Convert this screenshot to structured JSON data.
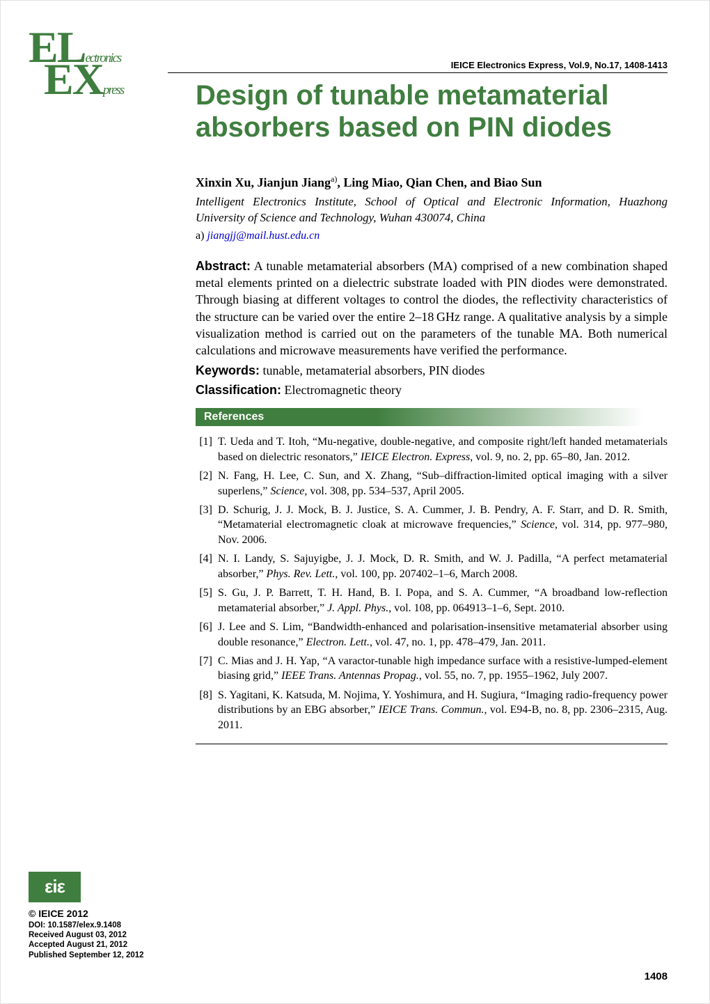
{
  "journal_header": "IEICE Electronics Express, Vol.9, No.17, 1408-1413",
  "logo": {
    "line1_main": "EL",
    "line1_suffix": "ectronics",
    "line2_main": "EX",
    "line2_suffix": "press"
  },
  "title": "Design of tunable metamaterial absorbers based on PIN diodes",
  "authors_html": "Xinxin Xu, Jianjun Jiang<sup>a)</sup>, Ling Miao, Qian Chen, and Biao Sun",
  "affiliation": "Intelligent Electronics Institute, School of Optical and Electronic Information, Huazhong University of Science and Technology, Wuhan 430074, China",
  "email_prefix": "a) ",
  "email": "jiangjj@mail.hust.edu.cn",
  "abstract_label": "Abstract:",
  "abstract": "A tunable metamaterial absorbers (MA) comprised of a new combination shaped metal elements printed on a dielectric substrate loaded with PIN diodes were demonstrated. Through biasing at different voltages to control the diodes, the reflectivity characteristics of the structure can be varied over the entire 2–18 GHz range. A qualitative analysis by a simple visualization method is carried out on the parameters of the tunable MA. Both numerical calculations and microwave measurements have verified the performance.",
  "keywords_label": "Keywords:",
  "keywords": "tunable, metamaterial absorbers, PIN diodes",
  "classification_label": "Classification:",
  "classification": "Electromagnetic theory",
  "references_label": "References",
  "references": [
    "T. Ueda and T. Itoh, “Mu-negative, double-negative, and composite right/left handed metamaterials based on dielectric resonators,” <span class=\"italic\">IEICE Electron. Express</span>, vol. 9, no. 2, pp. 65–80, Jan. 2012.",
    "N. Fang, H. Lee, C. Sun, and X. Zhang, “Sub–diffraction-limited optical imaging with a silver superlens,” <span class=\"italic\">Science</span>, vol. 308, pp. 534–537, April 2005.",
    "D. Schurig, J. J. Mock, B. J. Justice, S. A. Cummer, J. B. Pendry, A. F. Starr, and D. R. Smith, “Metamaterial electromagnetic cloak at microwave frequencies,” <span class=\"italic\">Science</span>, vol. 314, pp. 977–980, Nov. 2006.",
    "N. I. Landy, S. Sajuyigbe, J. J. Mock, D. R. Smith, and W. J. Padilla, “A perfect metamaterial absorber,” <span class=\"italic\">Phys. Rev. Lett.</span>, vol. 100, pp. 207402–1–6, March 2008.",
    "S. Gu, J. P. Barrett, T. H. Hand, B. I. Popa, and S. A. Cummer, “A broadband low-reflection metamaterial absorber,” <span class=\"italic\">J. Appl. Phys.</span>, vol. 108, pp. 064913–1–6, Sept. 2010.",
    "J. Lee and S. Lim, “Bandwidth-enhanced and polarisation-insensitive metamaterial absorber using double resonance,” <span class=\"italic\">Electron. Lett.</span>, vol. 47, no. 1, pp. 478–479, Jan. 2011.",
    "C. Mias and J. H. Yap, “A varactor-tunable high impedance surface with a resistive-lumped-element biasing grid,” <span class=\"italic\">IEEE Trans. Antennas Propag.</span>, vol. 55, no. 7, pp. 1955–1962, July 2007.",
    "S. Yagitani, K. Katsuda, M. Nojima, Y. Yoshimura, and H. Sugiura, “Imaging radio-frequency power distributions by an EBG absorber,” <span class=\"italic\">IEICE Trans. Commun.</span>, vol. E94-B, no. 8, pp. 2306–2315, Aug. 2011."
  ],
  "eic_text": "εiε",
  "copyright": "© IEICE 2012",
  "doi": "DOI: 10.1587/elex.9.1408",
  "received": "Received August 03, 2012",
  "accepted": "Accepted August 21, 2012",
  "published": "Published September 12, 2012",
  "page_number": "1408",
  "colors": {
    "brand_green": "#3f7e3f",
    "link_blue": "#0000cc",
    "text": "#000000",
    "bg": "#ffffff"
  }
}
